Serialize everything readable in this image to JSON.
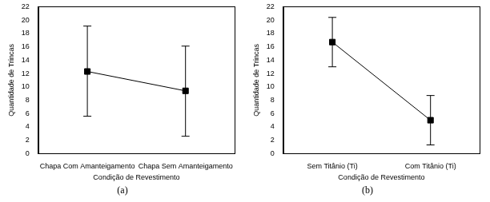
{
  "chart_data": [
    {
      "type": "line",
      "annotation": "(a)",
      "x_label": "Condição de Revestimento",
      "y_label": "Quantidade de Trincas",
      "categories": [
        "Chapa Com Amanteigamento",
        "Chapa Sem Amanteigamento"
      ],
      "values": [
        12.3,
        9.4
      ],
      "lower": [
        5.6,
        2.6
      ],
      "upper": [
        19.1,
        16.1
      ],
      "color": "#000000",
      "marker": "square",
      "line_style": "solid",
      "ylim": [
        0,
        22
      ],
      "yticks": [
        0,
        2,
        4,
        6,
        8,
        10,
        12,
        14,
        16,
        18,
        20,
        22
      ],
      "grid": false
    },
    {
      "type": "line",
      "annotation": "(b)",
      "x_label": "Condição de Revestimento",
      "y_label": "Quantidade de Trincas",
      "categories": [
        "Sem Titânio (Ti)",
        "Com Titânio (Ti)"
      ],
      "values": [
        16.7,
        5.0
      ],
      "lower": [
        13.0,
        1.3
      ],
      "upper": [
        20.4,
        8.7
      ],
      "color": "#000000",
      "marker": "square",
      "line_style": "solid",
      "ylim": [
        0,
        22
      ],
      "yticks": [
        0,
        2,
        4,
        6,
        8,
        10,
        12,
        14,
        16,
        18,
        20,
        22
      ],
      "grid": false
    }
  ]
}
